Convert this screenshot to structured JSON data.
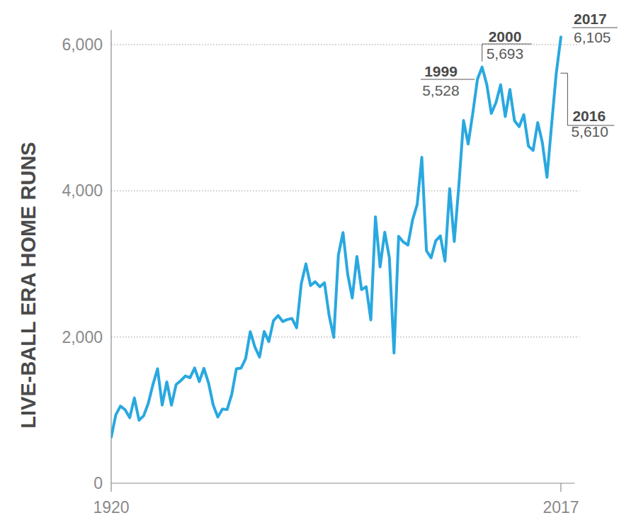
{
  "chart_data": {
    "type": "line",
    "y_label": "LIVE-BALL ERA HOME RUNS",
    "color": "#29a8e0",
    "grid": true,
    "xlim": [
      1920,
      2020
    ],
    "xticks": [
      1920,
      2017
    ],
    "ylim": [
      0,
      6200
    ],
    "yticks": [
      0,
      {
        "value": 2000,
        "label": "2,000"
      },
      {
        "value": 4000,
        "label": "4,000"
      },
      {
        "value": 6000,
        "label": "6,000"
      }
    ],
    "x": [
      1920,
      1921,
      1922,
      1923,
      1924,
      1925,
      1926,
      1927,
      1928,
      1929,
      1930,
      1931,
      1932,
      1933,
      1934,
      1935,
      1936,
      1937,
      1938,
      1939,
      1940,
      1941,
      1942,
      1943,
      1944,
      1945,
      1946,
      1947,
      1948,
      1949,
      1950,
      1951,
      1952,
      1953,
      1954,
      1955,
      1956,
      1957,
      1958,
      1959,
      1960,
      1961,
      1962,
      1963,
      1964,
      1965,
      1966,
      1967,
      1968,
      1969,
      1970,
      1971,
      1972,
      1973,
      1974,
      1975,
      1976,
      1977,
      1978,
      1979,
      1980,
      1981,
      1982,
      1983,
      1984,
      1985,
      1986,
      1987,
      1988,
      1989,
      1990,
      1991,
      1992,
      1993,
      1994,
      1995,
      1996,
      1997,
      1998,
      1999,
      2000,
      2001,
      2002,
      2003,
      2004,
      2005,
      2006,
      2007,
      2008,
      2009,
      2010,
      2011,
      2012,
      2013,
      2014,
      2015,
      2016,
      2017
    ],
    "values": [
      630,
      937,
      1055,
      1006,
      896,
      1167,
      863,
      922,
      1093,
      1349,
      1565,
      1069,
      1386,
      1068,
      1349,
      1403,
      1468,
      1443,
      1576,
      1389,
      1571,
      1371,
      1071,
      905,
      1016,
      1007,
      1215,
      1565,
      1575,
      1704,
      2073,
      1863,
      1727,
      2076,
      1937,
      2224,
      2294,
      2212,
      2240,
      2253,
      2127,
      2730,
      3001,
      2704,
      2756,
      2688,
      2743,
      2299,
      1995,
      3119,
      3429,
      2863,
      2534,
      3102,
      2648,
      2689,
      2235,
      3644,
      2958,
      3433,
      3087,
      1781,
      3379,
      3301,
      3258,
      3602,
      3813,
      4458,
      3180,
      3083,
      3317,
      3383,
      3038,
      4030,
      3306,
      4081,
      4962,
      4640,
      5064,
      5528,
      5693,
      5458,
      5059,
      5207,
      5451,
      5017,
      5386,
      4957,
      4878,
      5042,
      4613,
      4552,
      4934,
      4661,
      4186,
      4909,
      5610,
      6105
    ],
    "annotations": [
      {
        "x": 2017,
        "value": 6105,
        "label": "2017",
        "value_label": "6,105"
      },
      {
        "x": 2000,
        "value": 5693,
        "label": "2000",
        "value_label": "5,693"
      },
      {
        "x": 1999,
        "value": 5528,
        "label": "1999",
        "value_label": "5,528"
      },
      {
        "x": 2016,
        "value": 5610,
        "label": "2016",
        "value_label": "5,610"
      }
    ]
  }
}
